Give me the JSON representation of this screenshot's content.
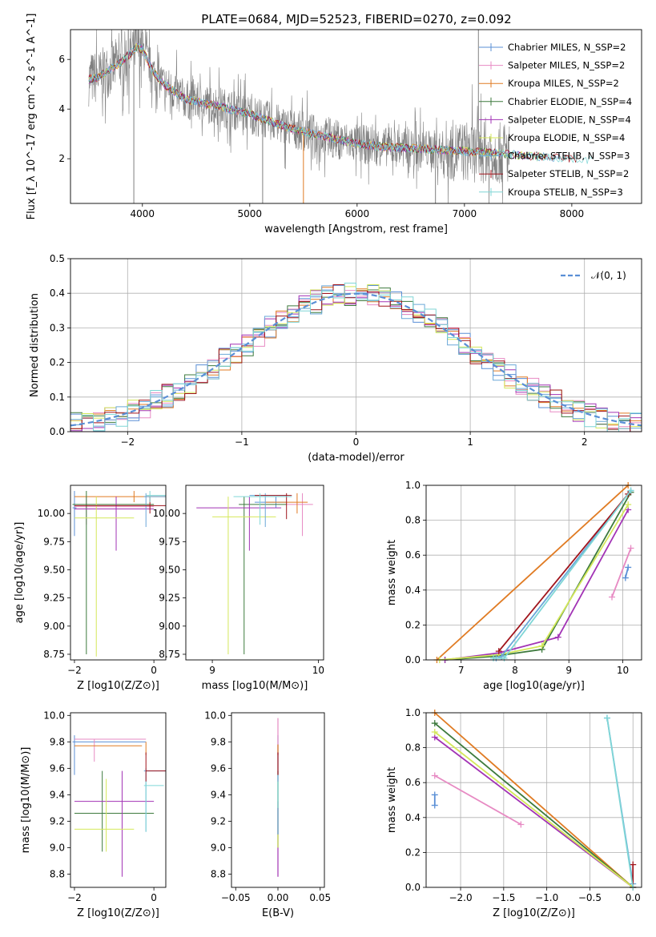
{
  "title": "PLATE=0684, MJD=52523, FIBERID=0270, z=0.092",
  "colors": {
    "chabrier_miles": "#5a8fd6",
    "salpeter_miles": "#e78ac3",
    "kroupa_miles": "#e07b23",
    "chabrier_elodie": "#3d7a3d",
    "salpeter_elodie": "#a233b5",
    "kroupa_elodie": "#d4e85a",
    "chabrier_stelib": "#6aa7d8",
    "salpeter_stelib": "#a0141c",
    "kroupa_stelib": "#7fd6d6",
    "data": "#808080"
  },
  "chart_data": [
    {
      "type": "line",
      "xlabel": "wavelength [Angstrom, rest frame]",
      "ylabel": "Flux [f_λ 10^-17 erg cm^-2 s^-1 A^-1]",
      "xticks": [
        "4000",
        "5000",
        "6000",
        "7000",
        "8000"
      ],
      "yticks": [
        "2",
        "4",
        "6"
      ],
      "xlim": [
        3330,
        8650
      ],
      "ylim": [
        0.2,
        7.2
      ],
      "grid": false,
      "legend_position": "right",
      "legend": [
        "Chabrier MILES, N_SSP=2",
        "Salpeter MILES, N_SSP=2",
        "Kroupa MILES, N_SSP=2",
        "Chabrier ELODIE, N_SSP=4",
        "Salpeter ELODIE, N_SSP=4",
        "Kroupa ELODIE, N_SSP=4",
        "Chabrier STELIB, N_SSP=3",
        "Salpeter STELIB, N_SSP=2",
        "Kroupa STELIB, N_SSP=3"
      ],
      "model_curve": {
        "x": [
          3500,
          3600,
          3700,
          3800,
          3850,
          3900,
          3950,
          4000,
          4100,
          4200,
          4300,
          4400,
          4500,
          4600,
          4700,
          4800,
          5000,
          5200,
          5400,
          5600,
          5800,
          6000,
          6200,
          6400,
          6600,
          6800,
          7000,
          7200,
          7400,
          7600,
          7800,
          8000,
          8200,
          8400
        ],
        "y": [
          5.2,
          5.3,
          5.6,
          5.9,
          6.1,
          6.3,
          6.5,
          6.4,
          5.5,
          5.0,
          4.7,
          4.4,
          4.3,
          4.2,
          4.15,
          4.0,
          3.8,
          3.5,
          3.2,
          3.0,
          2.8,
          2.6,
          2.5,
          2.45,
          2.4,
          2.35,
          2.3,
          2.25,
          2.2,
          2.1,
          2.05,
          2.0,
          1.95,
          1.9
        ]
      }
    },
    {
      "type": "bar",
      "xlabel": "(data-model)/error",
      "ylabel": "Normed distribution",
      "xticks": [
        "−2",
        "−1",
        "0",
        "1",
        "2"
      ],
      "yticks": [
        "0.0",
        "0.1",
        "0.2",
        "0.3",
        "0.4",
        "0.5"
      ],
      "xlim": [
        -2.5,
        2.5
      ],
      "ylim": [
        0,
        0.5
      ],
      "grid": true,
      "legend": [
        "𝒩(0, 1)"
      ],
      "bins": [
        -2.5,
        -2.4,
        -2.3,
        -2.2,
        -2.1,
        -2.0,
        -1.9,
        -1.8,
        -1.7,
        -1.6,
        -1.5,
        -1.4,
        -1.3,
        -1.2,
        -1.1,
        -1.0,
        -0.9,
        -0.8,
        -0.7,
        -0.6,
        -0.5,
        -0.4,
        -0.3,
        -0.2,
        -0.1,
        0.0,
        0.1,
        0.2,
        0.3,
        0.4,
        0.5,
        0.6,
        0.7,
        0.8,
        0.9,
        1.0,
        1.1,
        1.2,
        1.3,
        1.4,
        1.5,
        1.6,
        1.7,
        1.8,
        1.9,
        2.0,
        2.1,
        2.2,
        2.3,
        2.4
      ]
    },
    {
      "type": "scatter",
      "xlabel": "Z [log10(Z/Z⊙)]",
      "ylabel": "age  [log10(age/yr)]",
      "xticks": [
        "−2",
        "0"
      ],
      "yticks": [
        "8.75",
        "9.00",
        "9.25",
        "9.50",
        "9.75",
        "10.00"
      ],
      "xlim": [
        -2.1,
        0.3
      ],
      "ylim": [
        8.7,
        10.25
      ]
    },
    {
      "type": "scatter",
      "xlabel": "mass [log10(M/M⊙)]",
      "ylabel": "",
      "xticks": [
        "9",
        "10"
      ],
      "yticks": [
        "8.75",
        "9.00",
        "9.25",
        "9.50",
        "9.75",
        "10.00"
      ],
      "xlim": [
        8.75,
        10.05
      ],
      "ylim": [
        8.7,
        10.25
      ]
    },
    {
      "type": "line",
      "xlabel": "age  [log10(age/yr)]",
      "ylabel": "mass weight",
      "xticks": [
        "7",
        "8",
        "9",
        "10"
      ],
      "yticks": [
        "0.0",
        "0.2",
        "0.4",
        "0.6",
        "0.8",
        "1.0"
      ],
      "xlim": [
        6.35,
        10.35
      ],
      "ylim": [
        0,
        1.0
      ],
      "grid": true,
      "series": [
        {
          "name": "Chabrier MILES",
          "x": [
            10.05,
            10.1
          ],
          "y": [
            0.47,
            0.53
          ]
        },
        {
          "name": "Salpeter MILES",
          "x": [
            9.8,
            10.15
          ],
          "y": [
            0.36,
            0.64
          ]
        },
        {
          "name": "Kroupa MILES",
          "x": [
            6.55,
            10.1
          ],
          "y": [
            0.0,
            1.0
          ]
        },
        {
          "name": "Chabrier ELODIE",
          "x": [
            6.7,
            7.6,
            8.5,
            10.15
          ],
          "y": [
            0.0,
            0.02,
            0.06,
            0.96
          ]
        },
        {
          "name": "Salpeter ELODIE",
          "x": [
            6.7,
            7.7,
            8.8,
            10.1
          ],
          "y": [
            0.0,
            0.04,
            0.13,
            0.86
          ]
        },
        {
          "name": "Kroupa ELODIE",
          "x": [
            6.6,
            7.7,
            8.5,
            10.1
          ],
          "y": [
            0.0,
            0.03,
            0.08,
            0.89
          ]
        },
        {
          "name": "Chabrier STELIB",
          "x": [
            7.65,
            7.75,
            10.15
          ],
          "y": [
            0.01,
            0.02,
            0.97
          ]
        },
        {
          "name": "Salpeter STELIB",
          "x": [
            7.7,
            10.1
          ],
          "y": [
            0.05,
            0.95
          ]
        },
        {
          "name": "Kroupa STELIB",
          "x": [
            7.6,
            7.8,
            10.15
          ],
          "y": [
            0.01,
            0.01,
            0.97
          ]
        }
      ]
    },
    {
      "type": "scatter",
      "xlabel": "Z [log10(Z/Z⊙)]",
      "ylabel": "mass [log10(M/M⊙)]",
      "xticks": [
        "−2",
        "0"
      ],
      "yticks": [
        "8.8",
        "9.0",
        "9.2",
        "9.4",
        "9.6",
        "9.8",
        "10.0"
      ],
      "xlim": [
        -2.1,
        0.3
      ],
      "ylim": [
        8.7,
        10.02
      ]
    },
    {
      "type": "scatter",
      "xlabel": "E(B-V)",
      "ylabel": "",
      "xticks": [
        "−0.05",
        "0.00",
        "0.05"
      ],
      "yticks": [
        "8.8",
        "9.0",
        "9.2",
        "9.4",
        "9.6",
        "9.8",
        "10.0"
      ],
      "xlim": [
        -0.055,
        0.055
      ],
      "ylim": [
        8.7,
        10.02
      ]
    },
    {
      "type": "line",
      "xlabel": "Z [log10(Z/Z⊙)]",
      "ylabel": "mass weight",
      "xticks": [
        "−2.0",
        "−1.5",
        "−1.0",
        "−0.5",
        "0.0"
      ],
      "yticks": [
        "0.0",
        "0.2",
        "0.4",
        "0.6",
        "0.8",
        "1.0"
      ],
      "xlim": [
        -2.4,
        0.1
      ],
      "ylim": [
        0,
        1.0
      ],
      "grid": true,
      "series": [
        {
          "name": "Chabrier MILES",
          "x": [
            -2.3,
            -2.3
          ],
          "y": [
            0.47,
            0.53
          ]
        },
        {
          "name": "Salpeter MILES",
          "x": [
            -2.3,
            -1.3
          ],
          "y": [
            0.64,
            0.36
          ]
        },
        {
          "name": "Kroupa MILES",
          "x": [
            -2.3,
            0.0
          ],
          "y": [
            1.0,
            0.0
          ]
        },
        {
          "name": "Chabrier ELODIE",
          "x": [
            -2.3,
            0.0
          ],
          "y": [
            0.94,
            0.0
          ]
        },
        {
          "name": "Salpeter ELODIE",
          "x": [
            -2.3,
            0.0
          ],
          "y": [
            0.86,
            0.0
          ]
        },
        {
          "name": "Kroupa ELODIE",
          "x": [
            -2.3,
            0.0
          ],
          "y": [
            0.89,
            0.0
          ]
        },
        {
          "name": "Chabrier STELIB",
          "x": [
            -0.3,
            0.0
          ],
          "y": [
            0.97,
            0.02
          ]
        },
        {
          "name": "Salpeter STELIB",
          "x": [
            0.0,
            0.0
          ],
          "y": [
            0.13,
            0.0
          ]
        },
        {
          "name": "Kroupa STELIB",
          "x": [
            -0.3,
            0.0
          ],
          "y": [
            0.97,
            0.0
          ]
        }
      ]
    }
  ]
}
